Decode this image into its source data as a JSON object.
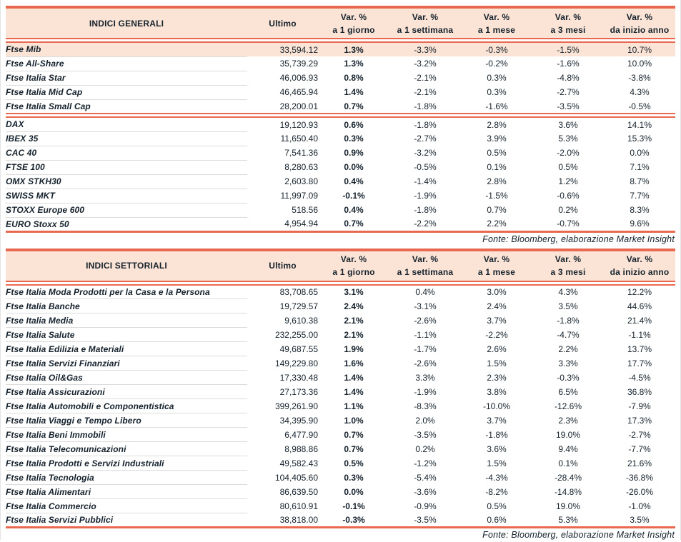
{
  "colors": {
    "accent_rule": "#e8694f",
    "header_bg": "#fbe4d5",
    "highlight_bg": "#fbe4d5",
    "text": "#15222d",
    "row_separator": "#dcdcdc"
  },
  "columns": {
    "ultimo_label": "Ultimo",
    "var_label": "Var. %",
    "periods": [
      "a 1 giorno",
      "a 1 settimana",
      "a 1 mese",
      "a 3 mesi",
      "da inizio anno"
    ]
  },
  "source_note": "Fonte: Bloomberg, elaborazione Market Insight",
  "table_general": {
    "title": "INDICI GENERALI",
    "groups": [
      {
        "rows": [
          {
            "name": "Ftse Mib",
            "ultimo": "33,594.12",
            "vars": [
              "1.3%",
              "-3.3%",
              "-0.3%",
              "-1.5%",
              "10.7%"
            ],
            "highlight": true
          },
          {
            "name": "Ftse All-Share",
            "ultimo": "35,739.29",
            "vars": [
              "1.3%",
              "-3.2%",
              "-0.2%",
              "-1.6%",
              "10.0%"
            ]
          },
          {
            "name": "Ftse Italia Star",
            "ultimo": "46,006.93",
            "vars": [
              "0.8%",
              "-2.1%",
              "0.3%",
              "-4.8%",
              "-3.8%"
            ]
          },
          {
            "name": "Ftse Italia Mid Cap",
            "ultimo": "46,465.94",
            "vars": [
              "1.4%",
              "-2.1%",
              "0.3%",
              "-2.7%",
              "4.3%"
            ]
          },
          {
            "name": "Ftse Italia Small Cap",
            "ultimo": "28,200.01",
            "vars": [
              "0.7%",
              "-1.8%",
              "-1.6%",
              "-3.5%",
              "-0.5%"
            ]
          }
        ]
      },
      {
        "rows": [
          {
            "name": "DAX",
            "ultimo": "19,120.93",
            "vars": [
              "0.6%",
              "-1.8%",
              "2.8%",
              "3.6%",
              "14.1%"
            ]
          },
          {
            "name": "IBEX 35",
            "ultimo": "11,650.40",
            "vars": [
              "0.3%",
              "-2.7%",
              "3.9%",
              "5.3%",
              "15.3%"
            ]
          },
          {
            "name": "CAC 40",
            "ultimo": "7,541.36",
            "vars": [
              "0.9%",
              "-3.2%",
              "0.5%",
              "-2.0%",
              "0.0%"
            ]
          },
          {
            "name": "FTSE 100",
            "ultimo": "8,280.63",
            "vars": [
              "0.0%",
              "-0.5%",
              "0.1%",
              "0.5%",
              "7.1%"
            ]
          },
          {
            "name": "OMX STKH30",
            "ultimo": "2,603.80",
            "vars": [
              "0.4%",
              "-1.4%",
              "2.8%",
              "1.2%",
              "8.7%"
            ]
          },
          {
            "name": "SWISS MKT",
            "ultimo": "11,997.09",
            "vars": [
              "-0.1%",
              "-1.9%",
              "-1.5%",
              "-0.6%",
              "7.7%"
            ]
          },
          {
            "name": "STOXX Europe 600",
            "ultimo": "518.56",
            "vars": [
              "0.4%",
              "-1.8%",
              "0.7%",
              "0.2%",
              "8.3%"
            ]
          },
          {
            "name": "EURO Stoxx 50",
            "ultimo": "4,954.94",
            "vars": [
              "0.7%",
              "-2.2%",
              "2.2%",
              "-0.7%",
              "9.6%"
            ]
          }
        ]
      }
    ]
  },
  "table_sector": {
    "title": "INDICI SETTORIALI",
    "groups": [
      {
        "rows": [
          {
            "name": "Ftse Italia Moda Prodotti per la Casa e la Persona",
            "ultimo": "83,708.65",
            "vars": [
              "3.1%",
              "0.4%",
              "3.0%",
              "4.3%",
              "12.2%"
            ]
          },
          {
            "name": "Ftse Italia Banche",
            "ultimo": "19,729.57",
            "vars": [
              "2.4%",
              "-3.1%",
              "2.4%",
              "3.5%",
              "44.6%"
            ]
          },
          {
            "name": "Ftse Italia Media",
            "ultimo": "9,610.38",
            "vars": [
              "2.1%",
              "-2.6%",
              "3.7%",
              "-1.8%",
              "21.4%"
            ]
          },
          {
            "name": "Ftse Italia Salute",
            "ultimo": "232,255.00",
            "vars": [
              "2.1%",
              "-1.1%",
              "-2.2%",
              "-4.7%",
              "-1.1%"
            ]
          },
          {
            "name": "Ftse Italia Edilizia e Materiali",
            "ultimo": "49,687.55",
            "vars": [
              "1.9%",
              "-1.7%",
              "2.6%",
              "2.2%",
              "13.7%"
            ]
          },
          {
            "name": "Ftse Italia Servizi Finanziari",
            "ultimo": "149,229.80",
            "vars": [
              "1.6%",
              "-2.6%",
              "1.5%",
              "3.3%",
              "17.7%"
            ]
          },
          {
            "name": "Ftse Italia Oil&Gas",
            "ultimo": "17,330.48",
            "vars": [
              "1.4%",
              "3.3%",
              "2.3%",
              "-0.3%",
              "-4.5%"
            ]
          },
          {
            "name": "Ftse Italia Assicurazioni",
            "ultimo": "27,173.36",
            "vars": [
              "1.4%",
              "-1.9%",
              "3.8%",
              "6.5%",
              "36.8%"
            ]
          },
          {
            "name": "Ftse Italia Automobili e Componentistica",
            "ultimo": "399,261.90",
            "vars": [
              "1.1%",
              "-8.3%",
              "-10.0%",
              "-12.6%",
              "-7.9%"
            ]
          },
          {
            "name": "Ftse Italia Viaggi e Tempo Libero",
            "ultimo": "34,395.90",
            "vars": [
              "1.0%",
              "2.0%",
              "3.7%",
              "2.3%",
              "17.3%"
            ]
          },
          {
            "name": "Ftse Italia Beni Immobili",
            "ultimo": "6,477.90",
            "vars": [
              "0.7%",
              "-3.5%",
              "-1.8%",
              "19.0%",
              "-2.7%"
            ]
          },
          {
            "name": "Ftse Italia Telecomunicazioni",
            "ultimo": "8,988.86",
            "vars": [
              "0.7%",
              "0.2%",
              "3.6%",
              "9.4%",
              "-7.7%"
            ]
          },
          {
            "name": "Ftse Italia Prodotti e Servizi Industriali",
            "ultimo": "49,582.43",
            "vars": [
              "0.5%",
              "-1.2%",
              "1.5%",
              "0.1%",
              "21.6%"
            ]
          },
          {
            "name": "Ftse Italia Tecnologia",
            "ultimo": "104,405.60",
            "vars": [
              "0.3%",
              "-5.4%",
              "-4.3%",
              "-28.4%",
              "-36.8%"
            ]
          },
          {
            "name": "Ftse Italia Alimentari",
            "ultimo": "86,639.50",
            "vars": [
              "0.0%",
              "-3.6%",
              "-8.2%",
              "-14.8%",
              "-26.0%"
            ]
          },
          {
            "name": "Ftse Italia Commercio",
            "ultimo": "80,610.91",
            "vars": [
              "-0.1%",
              "-0.9%",
              "0.5%",
              "19.0%",
              "-1.0%"
            ]
          },
          {
            "name": "Ftse Italia Servizi Pubblici",
            "ultimo": "38,818.00",
            "vars": [
              "-0.3%",
              "-3.5%",
              "0.6%",
              "5.3%",
              "3.5%"
            ]
          }
        ]
      }
    ]
  }
}
